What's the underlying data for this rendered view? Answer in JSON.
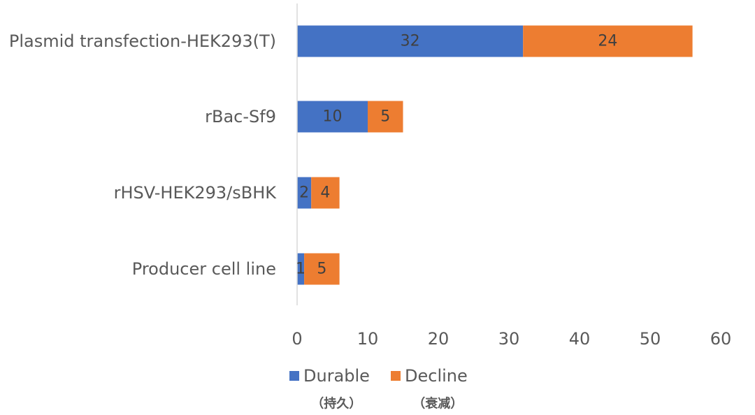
{
  "chart_data": {
    "type": "bar",
    "orientation": "horizontal",
    "stacked": true,
    "categories": [
      "Plasmid transfection-HEK293(T)",
      "rBac-Sf9",
      "rHSV-HEK293/sBHK",
      "Producer cell line"
    ],
    "series": [
      {
        "name": "Durable",
        "subtitle": "（持久）",
        "color": "#4472C4",
        "values": [
          32,
          10,
          2,
          1
        ]
      },
      {
        "name": "Decline",
        "subtitle": "（衰减）",
        "color": "#ED7D31",
        "values": [
          24,
          5,
          4,
          5
        ]
      }
    ],
    "xlim": [
      0,
      60
    ],
    "xticks": [
      0,
      10,
      20,
      30,
      40,
      50,
      60
    ],
    "grid": false,
    "legend_position": "bottom",
    "axis_color": "#D9D9D9"
  }
}
